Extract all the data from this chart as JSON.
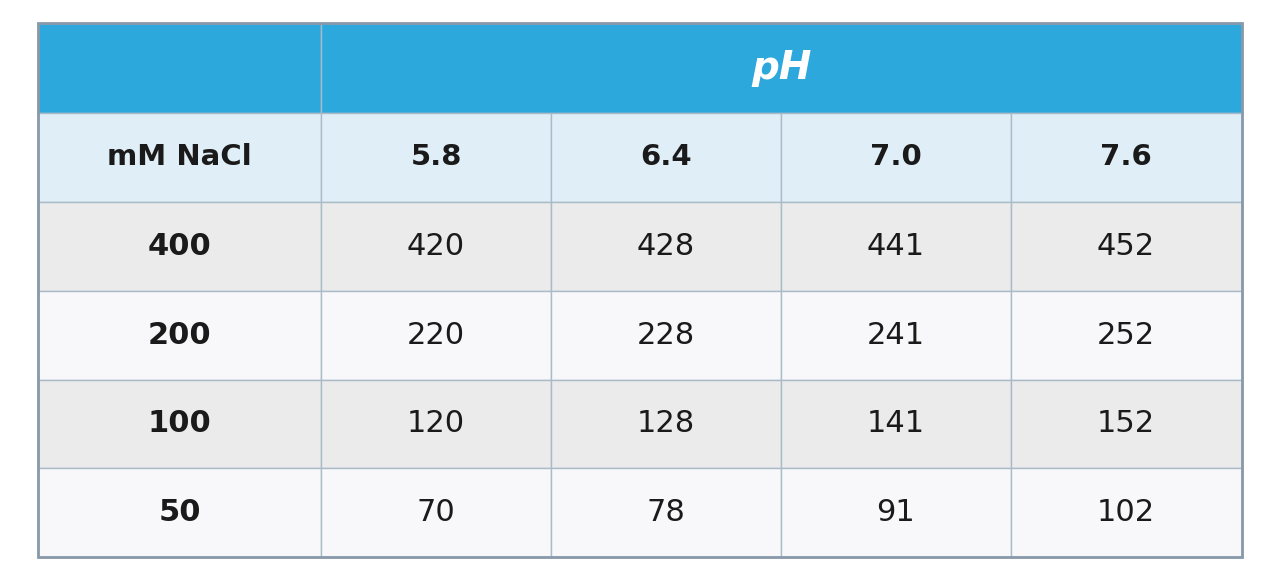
{
  "header_main": "pH",
  "col_header_label": "mM NaCl",
  "ph_values": [
    "5.8",
    "6.4",
    "7.0",
    "7.6"
  ],
  "rows": [
    {
      "nacl": "400",
      "values": [
        "420",
        "428",
        "441",
        "452"
      ]
    },
    {
      "nacl": "200",
      "values": [
        "220",
        "228",
        "241",
        "252"
      ]
    },
    {
      "nacl": "100",
      "values": [
        "120",
        "128",
        "141",
        "152"
      ]
    },
    {
      "nacl": "50",
      "values": [
        "70",
        "78",
        "91",
        "102"
      ]
    }
  ],
  "header_bg_color": "#2DA8DC",
  "header_text_color": "#FFFFFF",
  "subheader_bg_color": "#E0EEF8",
  "subheader_text_color": "#1A1A1A",
  "row_bg_even": "#EBEBEB",
  "row_bg_odd": "#F8F8FA",
  "border_color": "#AABBC8",
  "data_text_color": "#1A1A1A",
  "nacl_text_color": "#1A1A1A",
  "background_color": "#FFFFFF",
  "outer_border_color": "#8899AA"
}
